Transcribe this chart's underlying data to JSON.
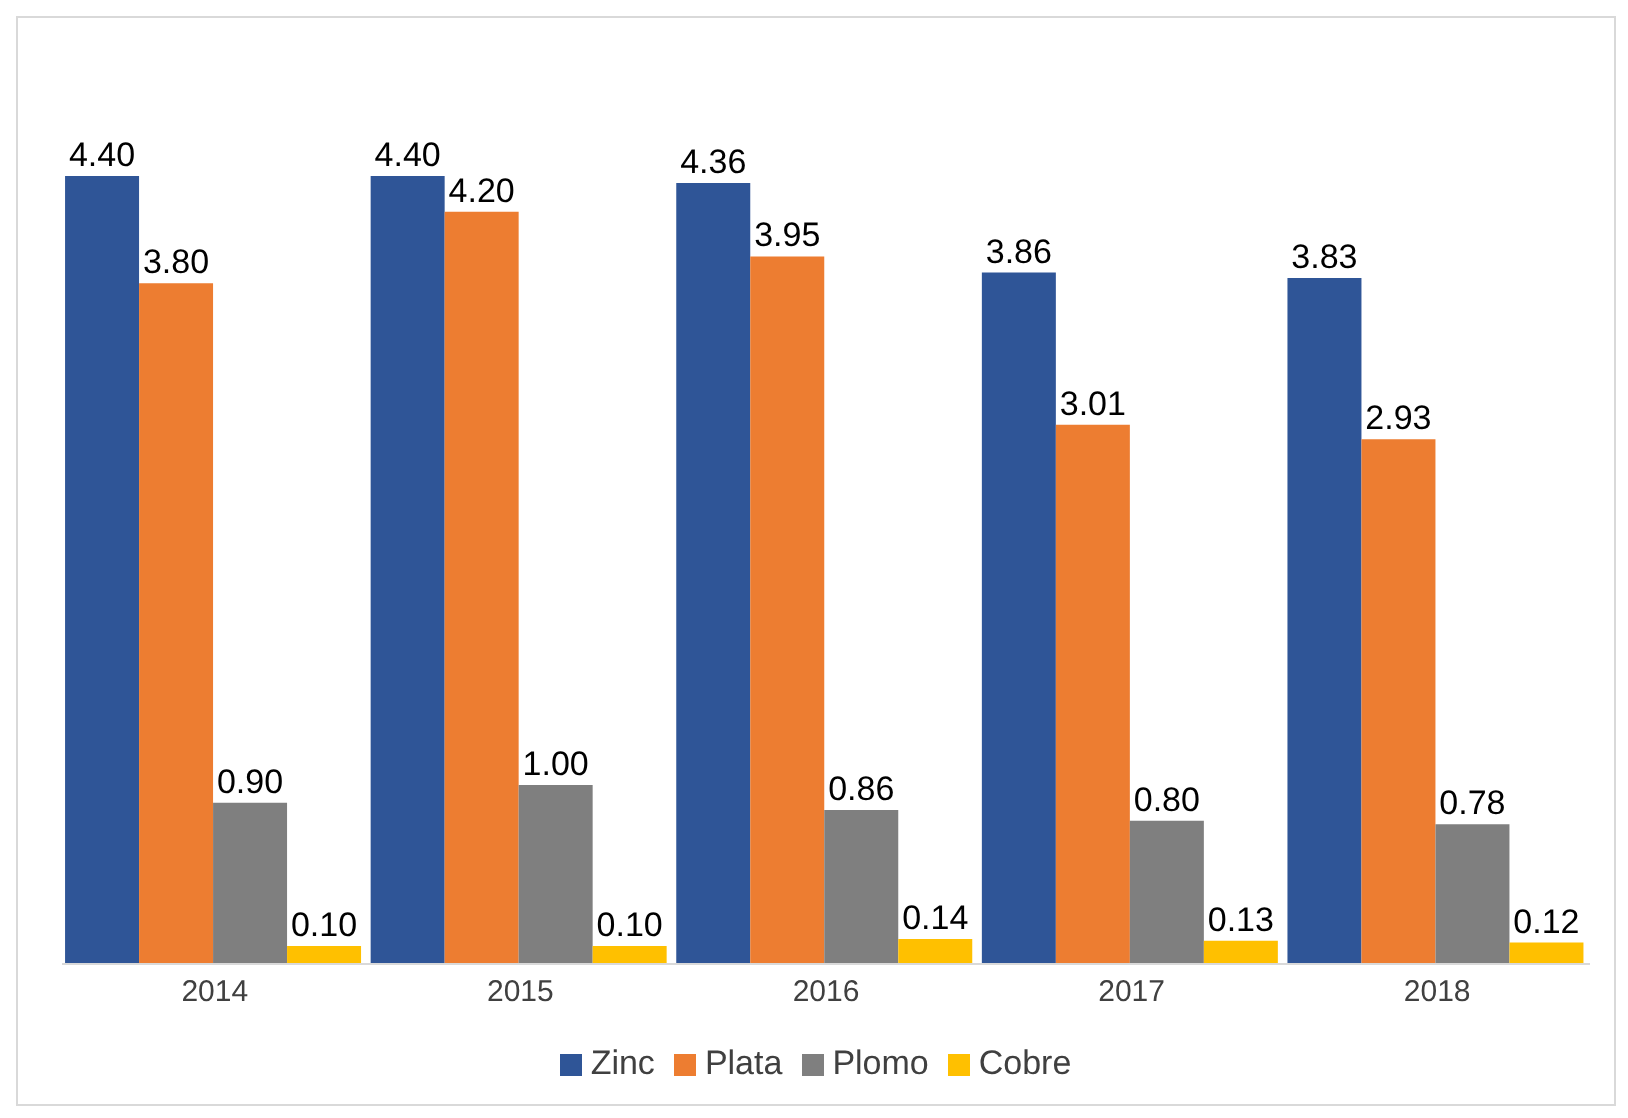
{
  "chart_data": {
    "type": "bar",
    "categories": [
      "2014",
      "2015",
      "2016",
      "2017",
      "2018"
    ],
    "series": [
      {
        "name": "Zinc",
        "color": "#2f5597",
        "values": [
          4.4,
          4.4,
          4.36,
          3.86,
          3.83
        ],
        "value_labels": [
          "4.40",
          "4.40",
          "4.36",
          "3.86",
          "3.83"
        ]
      },
      {
        "name": "Plata",
        "color": "#ed7d31",
        "values": [
          3.8,
          4.2,
          3.95,
          3.01,
          2.93
        ],
        "value_labels": [
          "3.80",
          "4.20",
          "3.95",
          "3.01",
          "2.93"
        ]
      },
      {
        "name": "Plomo",
        "color": "#7f7f7f",
        "values": [
          0.9,
          1.0,
          0.86,
          0.8,
          0.78
        ],
        "value_labels": [
          "0.90",
          "1.00",
          "0.86",
          "0.80",
          "0.78"
        ]
      },
      {
        "name": "Cobre",
        "color": "#ffc000",
        "values": [
          0.1,
          0.1,
          0.14,
          0.13,
          0.12
        ],
        "value_labels": [
          "0.10",
          "0.10",
          "0.14",
          "0.13",
          "0.12"
        ]
      }
    ],
    "legend": "bottom"
  }
}
